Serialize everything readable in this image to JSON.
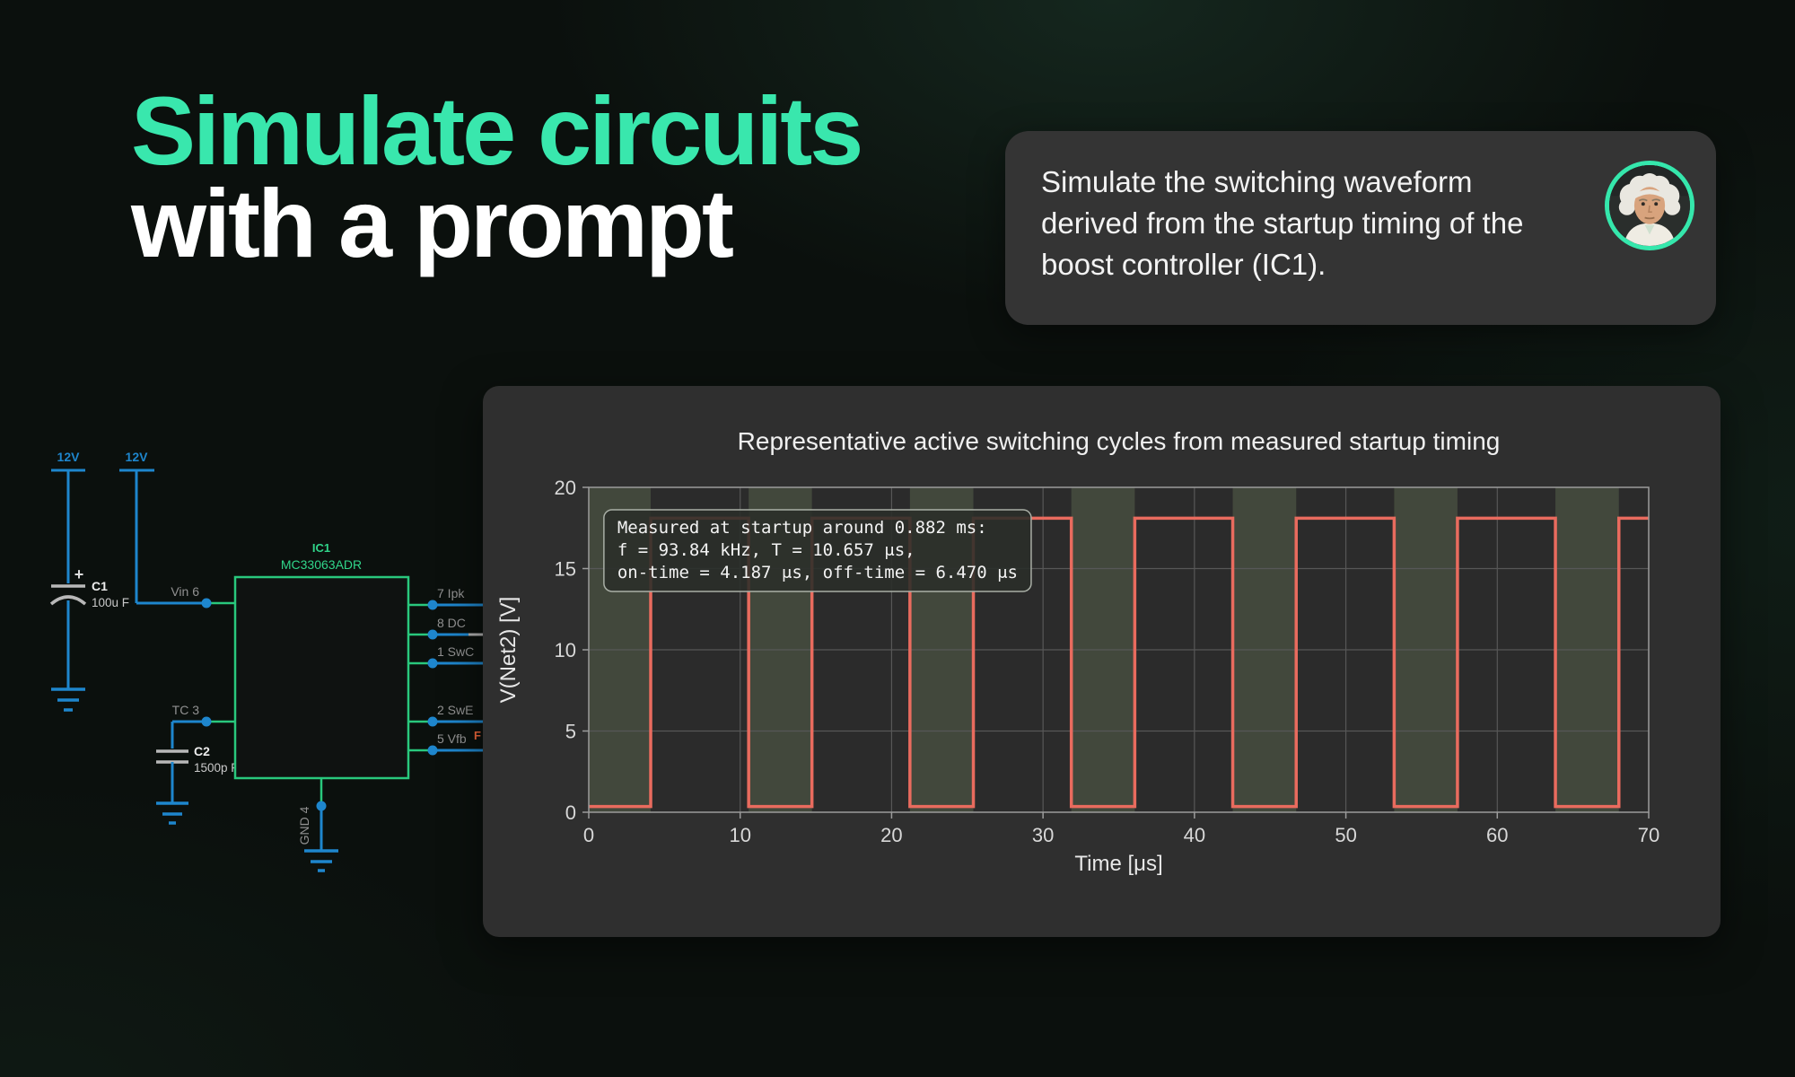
{
  "hero": {
    "title_line1": "Simulate circuits",
    "title_line2": "with a prompt",
    "accent_color": "#39e7ad"
  },
  "prompt_card": {
    "text": "Simulate the switching waveform derived from the startup timing of the boost controller (IC1).",
    "avatar": "scientist-with-wild-white-hair",
    "ring_color": "#35e7ac"
  },
  "schematic": {
    "supply1_label": "12V",
    "supply2_label": "12V",
    "c1": {
      "ref": "C1",
      "value": "100u F",
      "polarity_mark": "+"
    },
    "c2": {
      "ref": "C2",
      "value": "1500p F"
    },
    "ic": {
      "ref": "IC1",
      "part": "MC33063ADR"
    },
    "pins": {
      "vin": "Vin 6",
      "tc": "TC 3",
      "ipk": "7 Ipk",
      "dc": "8 DC",
      "swc": "1 SwC",
      "swe": "2 SwE",
      "vfb": "5 Vfb",
      "gnd": "GND 4"
    },
    "net_label_partial": "F",
    "wire_color": "#1e86cd",
    "box_color": "#29c87d"
  },
  "chart_data": {
    "type": "line",
    "title": "Representative active switching cycles from measured startup timing",
    "xlabel": "Time [μs]",
    "ylabel": "V(Net2) [V]",
    "xlim": [
      0,
      70
    ],
    "ylim": [
      0,
      20
    ],
    "xticks": [
      0,
      10,
      20,
      30,
      40,
      50,
      60,
      70
    ],
    "yticks": [
      0,
      5,
      10,
      15,
      20
    ],
    "grid": true,
    "waveform": {
      "high_v": 18.1,
      "low_v": 0.35,
      "period_us": 10.657,
      "on_time_us": 4.187,
      "off_time_us": 6.47,
      "frequency_khz": 93.84,
      "measured_at_ms": 0.882,
      "on_intervals_us": [
        [
          -0.1,
          4.09
        ],
        [
          10.56,
          14.74
        ],
        [
          21.21,
          25.4
        ],
        [
          31.87,
          36.06
        ],
        [
          42.53,
          46.72
        ],
        [
          53.19,
          57.37
        ],
        [
          63.84,
          68.03
        ]
      ]
    },
    "annotation": {
      "lines": [
        "Measured at startup around 0.882 ms:",
        "f = 93.84 kHz, T = 10.657 μs,",
        "on-time = 4.187 μs, off-time = 6.470 μs"
      ],
      "x_left_us": 1.0,
      "y_top_v": 18.62
    },
    "colors": {
      "line": "#e96b5e",
      "on_band": "#74865f",
      "grid": "#575757",
      "spine": "#9c9c9c",
      "plot_bg": "#2b2b2b",
      "panel_bg": "#2f2f2f",
      "tick_text": "#d8d8d8",
      "label_text": "#e8e8e8"
    },
    "legend_position": "none"
  }
}
